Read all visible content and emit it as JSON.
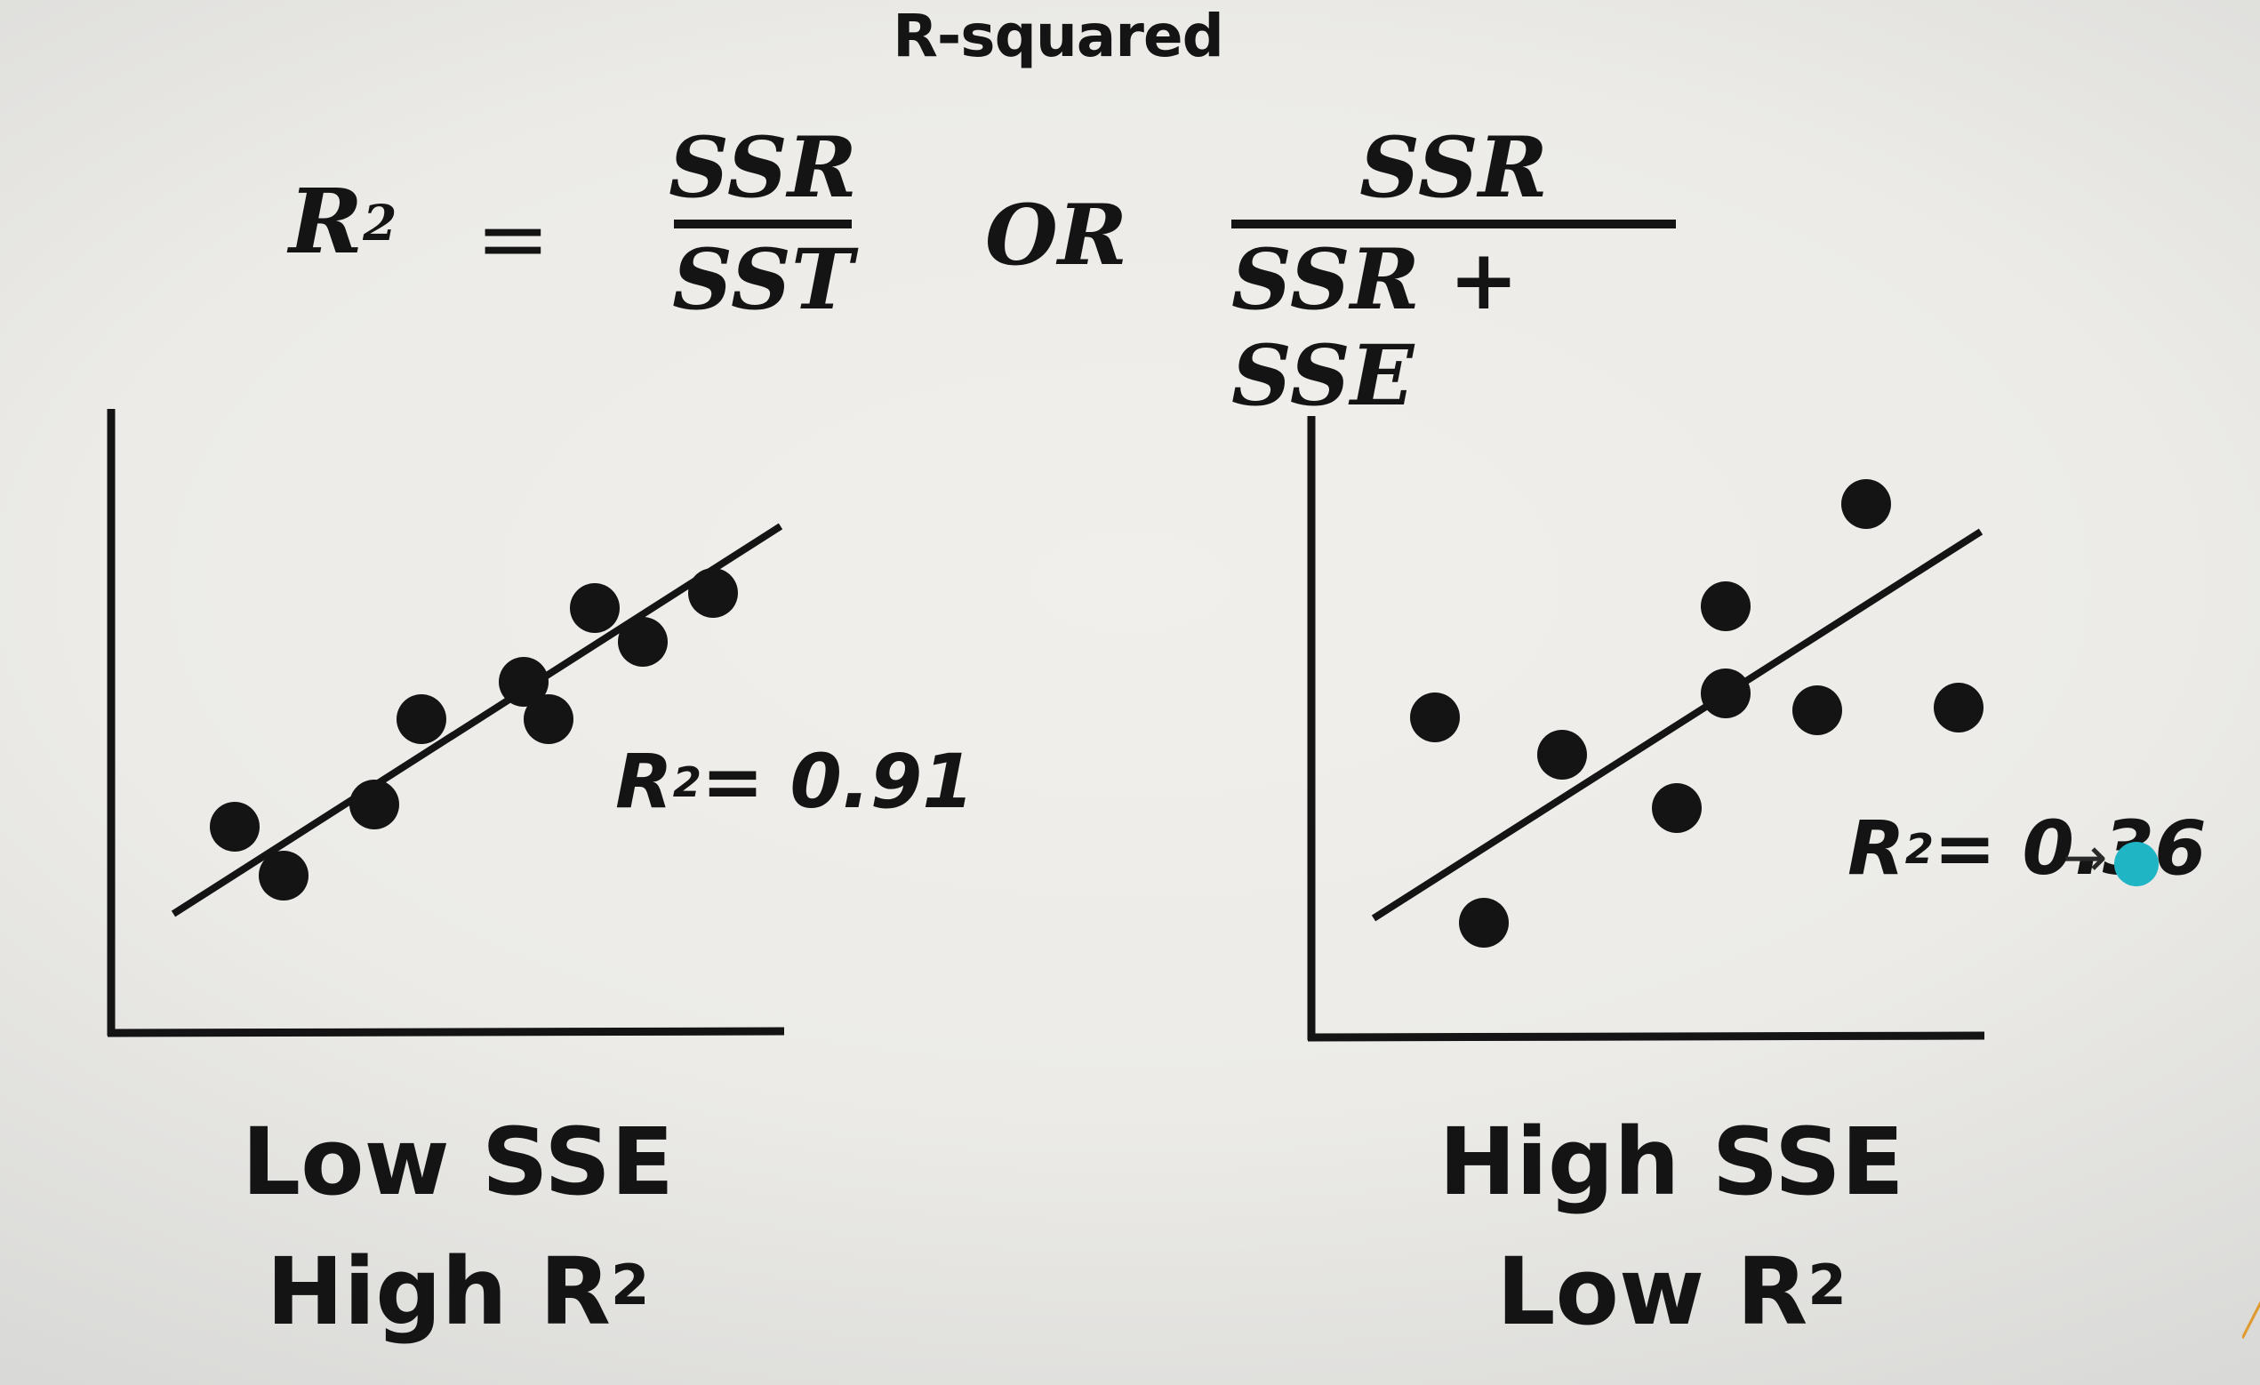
{
  "title": "R-squared",
  "formula": {
    "lhs": "R",
    "lhs_sup": "2",
    "equals": "=",
    "frac1_num": "SSR",
    "frac1_den": "SST",
    "or": "OR",
    "frac2_num": "SSR",
    "frac2_den": "SSR + SSE"
  },
  "plots": [
    {
      "annotation_prefix": "R",
      "annotation_sup": "2",
      "annotation_value": "= 0.91",
      "caption_line1": "Low SSE",
      "caption_line2": "High R",
      "caption_sup": "2"
    },
    {
      "annotation_prefix": "R",
      "annotation_sup": "2",
      "annotation_value": "= 0.36",
      "caption_line1": "High SSE",
      "caption_line2": "Low R",
      "caption_sup": "2"
    }
  ],
  "colors": {
    "ink": "#141414",
    "cursor": "#1fb5c4"
  }
}
